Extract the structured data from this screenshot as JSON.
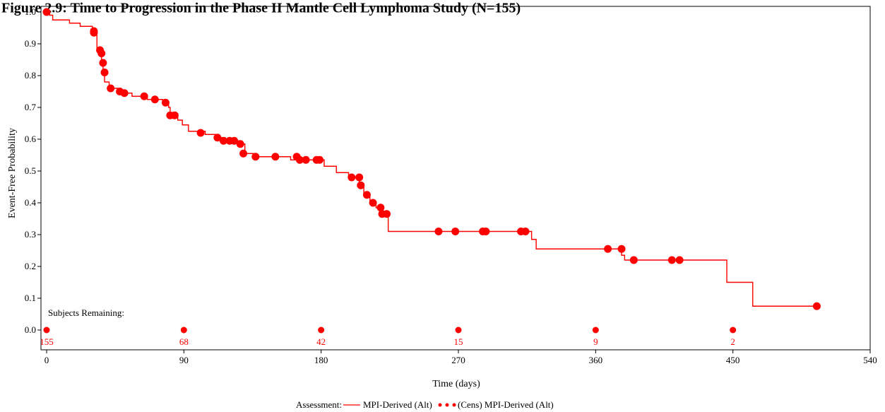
{
  "chart_data": {
    "type": "line",
    "title": "Figure 2.9: Time to Progression in the Phase II Mantle Cell Lymphoma Study (N=155)",
    "xlabel": "Time (days)",
    "ylabel": "Event-Free Probability",
    "xlim": [
      0,
      540
    ],
    "ylim": [
      0,
      1.0
    ],
    "x_ticks": [
      "0",
      "90",
      "180",
      "270",
      "360",
      "450",
      "540"
    ],
    "y_ticks": [
      "0.0",
      "0.1",
      "0.2",
      "0.3",
      "0.4",
      "0.5",
      "0.6",
      "0.7",
      "0.8",
      "0.9",
      "1.0"
    ],
    "color": "#ff0000",
    "curve": [
      [
        0,
        1.0
      ],
      [
        2,
        0.99
      ],
      [
        4,
        0.975
      ],
      [
        15,
        0.965
      ],
      [
        22,
        0.955
      ],
      [
        30,
        0.94
      ],
      [
        33,
        0.88
      ],
      [
        35,
        0.87
      ],
      [
        36,
        0.84
      ],
      [
        37,
        0.81
      ],
      [
        38,
        0.78
      ],
      [
        41,
        0.76
      ],
      [
        48,
        0.745
      ],
      [
        56,
        0.735
      ],
      [
        66,
        0.725
      ],
      [
        76,
        0.715
      ],
      [
        80,
        0.7
      ],
      [
        81,
        0.68
      ],
      [
        86,
        0.66
      ],
      [
        89,
        0.645
      ],
      [
        93,
        0.625
      ],
      [
        104,
        0.615
      ],
      [
        112,
        0.605
      ],
      [
        117,
        0.595
      ],
      [
        127,
        0.585
      ],
      [
        130,
        0.555
      ],
      [
        136,
        0.545
      ],
      [
        160,
        0.535
      ],
      [
        174,
        0.535
      ],
      [
        182,
        0.515
      ],
      [
        190,
        0.495
      ],
      [
        198,
        0.48
      ],
      [
        205,
        0.46
      ],
      [
        208,
        0.425
      ],
      [
        212,
        0.4
      ],
      [
        216,
        0.385
      ],
      [
        220,
        0.365
      ],
      [
        224,
        0.31
      ],
      [
        318,
        0.285
      ],
      [
        321,
        0.255
      ],
      [
        377,
        0.235
      ],
      [
        379,
        0.22
      ],
      [
        446,
        0.15
      ],
      [
        463,
        0.075
      ],
      [
        505,
        0.075
      ]
    ],
    "censored": [
      [
        0,
        1.0
      ],
      [
        31,
        0.94
      ],
      [
        31,
        0.935
      ],
      [
        35,
        0.88
      ],
      [
        36,
        0.87
      ],
      [
        37,
        0.84
      ],
      [
        38,
        0.81
      ],
      [
        42,
        0.76
      ],
      [
        48,
        0.75
      ],
      [
        51,
        0.745
      ],
      [
        64,
        0.735
      ],
      [
        71,
        0.725
      ],
      [
        78,
        0.715
      ],
      [
        81,
        0.675
      ],
      [
        84,
        0.675
      ],
      [
        101,
        0.62
      ],
      [
        112,
        0.605
      ],
      [
        116,
        0.595
      ],
      [
        120,
        0.595
      ],
      [
        123,
        0.595
      ],
      [
        127,
        0.585
      ],
      [
        129,
        0.555
      ],
      [
        137,
        0.545
      ],
      [
        150,
        0.545
      ],
      [
        164,
        0.545
      ],
      [
        166,
        0.535
      ],
      [
        170,
        0.535
      ],
      [
        177,
        0.535
      ],
      [
        179,
        0.535
      ],
      [
        200,
        0.48
      ],
      [
        205,
        0.48
      ],
      [
        206,
        0.455
      ],
      [
        210,
        0.425
      ],
      [
        214,
        0.4
      ],
      [
        219,
        0.385
      ],
      [
        220,
        0.365
      ],
      [
        223,
        0.365
      ],
      [
        257,
        0.31
      ],
      [
        268,
        0.31
      ],
      [
        286,
        0.31
      ],
      [
        288,
        0.31
      ],
      [
        311,
        0.31
      ],
      [
        314,
        0.31
      ],
      [
        368,
        0.255
      ],
      [
        377,
        0.255
      ],
      [
        385,
        0.22
      ],
      [
        410,
        0.22
      ],
      [
        415,
        0.22
      ],
      [
        505,
        0.075
      ]
    ],
    "subjects_remaining_label": "Subjects Remaining:",
    "subjects_remaining": [
      {
        "x": 0,
        "count": "155"
      },
      {
        "x": 90,
        "count": "68"
      },
      {
        "x": 180,
        "count": "42"
      },
      {
        "x": 270,
        "count": "15"
      },
      {
        "x": 360,
        "count": "9"
      },
      {
        "x": 450,
        "count": "2"
      }
    ],
    "legend": {
      "title": "Assessment:",
      "line_label": "MPI-Derived (Alt)",
      "marker_label": "(Cens) MPI-Derived (Alt)"
    }
  }
}
